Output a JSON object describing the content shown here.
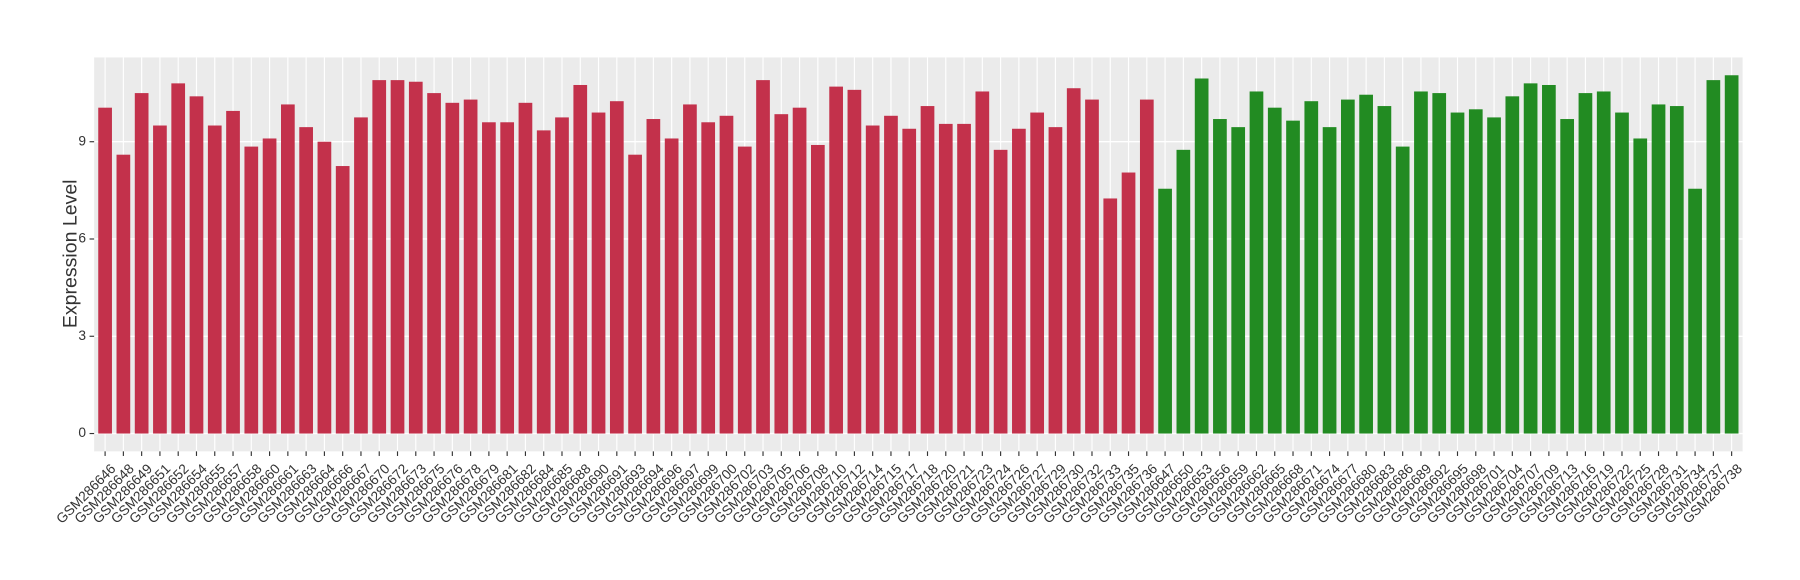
{
  "chart_data": {
    "type": "bar",
    "y_axis_label": "Expression Level",
    "categories": [
      "GSM286646",
      "GSM286648",
      "GSM286649",
      "GSM286651",
      "GSM286652",
      "GSM286654",
      "GSM286655",
      "GSM286657",
      "GSM286658",
      "GSM286660",
      "GSM286661",
      "GSM286663",
      "GSM286664",
      "GSM286666",
      "GSM286667",
      "GSM286670",
      "GSM286672",
      "GSM286673",
      "GSM286675",
      "GSM286676",
      "GSM286678",
      "GSM286679",
      "GSM286681",
      "GSM286682",
      "GSM286684",
      "GSM286685",
      "GSM286688",
      "GSM286690",
      "GSM286691",
      "GSM286693",
      "GSM286694",
      "GSM286696",
      "GSM286697",
      "GSM286699",
      "GSM286700",
      "GSM286702",
      "GSM286703",
      "GSM286705",
      "GSM286706",
      "GSM286708",
      "GSM286710",
      "GSM286712",
      "GSM286714",
      "GSM286715",
      "GSM286717",
      "GSM286718",
      "GSM286720",
      "GSM286721",
      "GSM286723",
      "GSM286724",
      "GSM286726",
      "GSM286727",
      "GSM286729",
      "GSM286730",
      "GSM286732",
      "GSM286733",
      "GSM286735",
      "GSM286736",
      "GSM286647",
      "GSM286650",
      "GSM286653",
      "GSM286656",
      "GSM286659",
      "GSM286662",
      "GSM286665",
      "GSM286668",
      "GSM286671",
      "GSM286674",
      "GSM286677",
      "GSM286680",
      "GSM286683",
      "GSM286686",
      "GSM286689",
      "GSM286692",
      "GSM286695",
      "GSM286698",
      "GSM286701",
      "GSM286704",
      "GSM286707",
      "GSM286709",
      "GSM286713",
      "GSM286716",
      "GSM286719",
      "GSM286722",
      "GSM286725",
      "GSM286728",
      "GSM286731",
      "GSM286734",
      "GSM286737",
      "GSM286738"
    ],
    "series": [
      {
        "color": "#c3314b",
        "values": [
          10.05,
          8.6,
          10.5,
          9.5,
          10.8,
          10.4,
          9.5,
          9.95,
          8.85,
          9.1,
          10.15,
          9.45,
          9.0,
          8.25,
          9.75,
          10.9,
          10.9,
          10.85,
          10.5,
          10.2,
          10.3,
          9.6,
          9.6,
          10.2,
          9.35,
          9.75,
          10.75,
          9.9,
          10.25,
          8.6,
          9.7,
          9.1,
          10.15,
          9.6,
          9.8,
          8.85,
          10.9,
          9.85,
          10.05,
          8.9,
          10.7,
          10.6,
          9.5,
          9.8,
          9.4,
          10.1,
          9.55,
          9.55,
          10.55,
          8.75,
          9.4,
          9.9,
          9.45,
          10.65,
          10.3,
          7.25,
          8.05,
          10.3,
          null,
          null,
          null,
          null,
          null,
          null,
          null,
          null,
          null,
          null,
          null,
          null,
          null,
          null,
          null,
          null,
          null,
          null,
          null,
          null,
          null,
          null,
          null,
          null,
          null,
          null,
          null,
          null,
          null,
          null,
          null,
          null
        ]
      },
      {
        "color": "#228b22",
        "values": [
          null,
          null,
          null,
          null,
          null,
          null,
          null,
          null,
          null,
          null,
          null,
          null,
          null,
          null,
          null,
          null,
          null,
          null,
          null,
          null,
          null,
          null,
          null,
          null,
          null,
          null,
          null,
          null,
          null,
          null,
          null,
          null,
          null,
          null,
          null,
          null,
          null,
          null,
          null,
          null,
          null,
          null,
          null,
          null,
          null,
          null,
          null,
          null,
          null,
          null,
          null,
          null,
          null,
          null,
          null,
          null,
          null,
          null,
          7.55,
          8.75,
          10.95,
          9.7,
          9.45,
          10.55,
          10.05,
          9.65,
          10.25,
          9.45,
          10.3,
          10.45,
          10.1,
          8.85,
          10.55,
          10.5,
          9.9,
          10.0,
          9.75,
          10.4,
          10.8,
          10.75,
          9.7,
          10.5,
          10.55,
          9.9,
          9.1,
          10.15,
          10.1,
          7.55,
          10.9,
          11.05
        ]
      }
    ],
    "ylim": [
      -0.55,
      11.6
    ],
    "yticks": [
      0,
      3,
      6,
      9
    ],
    "grid": true
  }
}
